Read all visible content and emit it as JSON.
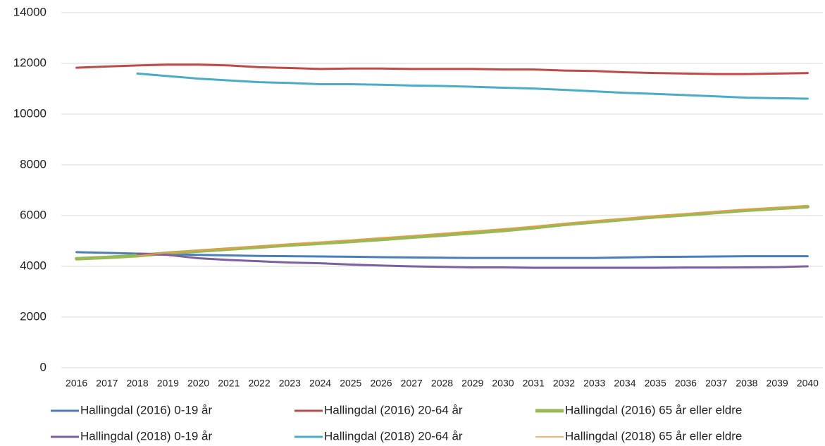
{
  "chart_data": {
    "type": "line",
    "categories": [
      2016,
      2017,
      2018,
      2019,
      2020,
      2021,
      2022,
      2023,
      2024,
      2025,
      2026,
      2027,
      2028,
      2029,
      2030,
      2031,
      2032,
      2033,
      2034,
      2035,
      2036,
      2037,
      2038,
      2039,
      2040
    ],
    "ylim": [
      0,
      14000
    ],
    "yticks": [
      0,
      2000,
      4000,
      6000,
      8000,
      10000,
      12000,
      14000
    ],
    "grid": true,
    "legend": "bottom",
    "series": [
      {
        "name": "Hallingdal (2016) 0-19 år",
        "color": "#4a7ebb",
        "line_width": 3,
        "values": [
          4560,
          4530,
          4500,
          4480,
          4450,
          4430,
          4410,
          4400,
          4390,
          4380,
          4360,
          4350,
          4340,
          4330,
          4330,
          4330,
          4330,
          4330,
          4350,
          4370,
          4380,
          4390,
          4400,
          4400,
          4400
        ]
      },
      {
        "name": "Hallingdal (2016) 20-64 år",
        "color": "#be4b48",
        "line_width": 3,
        "values": [
          11830,
          11880,
          11920,
          11950,
          11950,
          11920,
          11850,
          11820,
          11780,
          11800,
          11800,
          11780,
          11780,
          11780,
          11760,
          11760,
          11720,
          11700,
          11650,
          11620,
          11600,
          11580,
          11580,
          11600,
          11620
        ]
      },
      {
        "name": "Hallingdal (2016) 65 år eller eldre",
        "color": "#98b954",
        "line_width": 5,
        "values": [
          4300,
          4350,
          4420,
          4520,
          4600,
          4680,
          4760,
          4840,
          4910,
          4980,
          5060,
          5150,
          5230,
          5320,
          5410,
          5520,
          5650,
          5750,
          5850,
          5950,
          6030,
          6120,
          6210,
          6280,
          6350
        ]
      },
      {
        "name": "Hallingdal (2018) 0-19 år",
        "color": "#7d60a0",
        "line_width": 3,
        "values": [
          null,
          null,
          4500,
          4450,
          4320,
          4250,
          4200,
          4150,
          4120,
          4070,
          4030,
          4000,
          3980,
          3960,
          3960,
          3940,
          3940,
          3940,
          3940,
          3940,
          3950,
          3950,
          3960,
          3970,
          4000
        ]
      },
      {
        "name": "Hallingdal (2018) 20-64 år",
        "color": "#4bacc6",
        "line_width": 3,
        "values": [
          null,
          null,
          11600,
          11500,
          11400,
          11330,
          11260,
          11230,
          11180,
          11180,
          11160,
          11130,
          11110,
          11080,
          11040,
          11010,
          10960,
          10900,
          10840,
          10800,
          10750,
          10700,
          10650,
          10630,
          10610
        ]
      },
      {
        "name": "Hallingdal (2018) 65 år eller eldre",
        "color": "#f79646",
        "line_width": 1.5,
        "values": [
          null,
          null,
          4420,
          4530,
          4630,
          4700,
          4790,
          4890,
          4960,
          5040,
          5130,
          5210,
          5300,
          5390,
          5480,
          5580,
          5690,
          5800,
          5890,
          5990,
          6080,
          6170,
          6260,
          6320,
          6400
        ]
      }
    ]
  }
}
